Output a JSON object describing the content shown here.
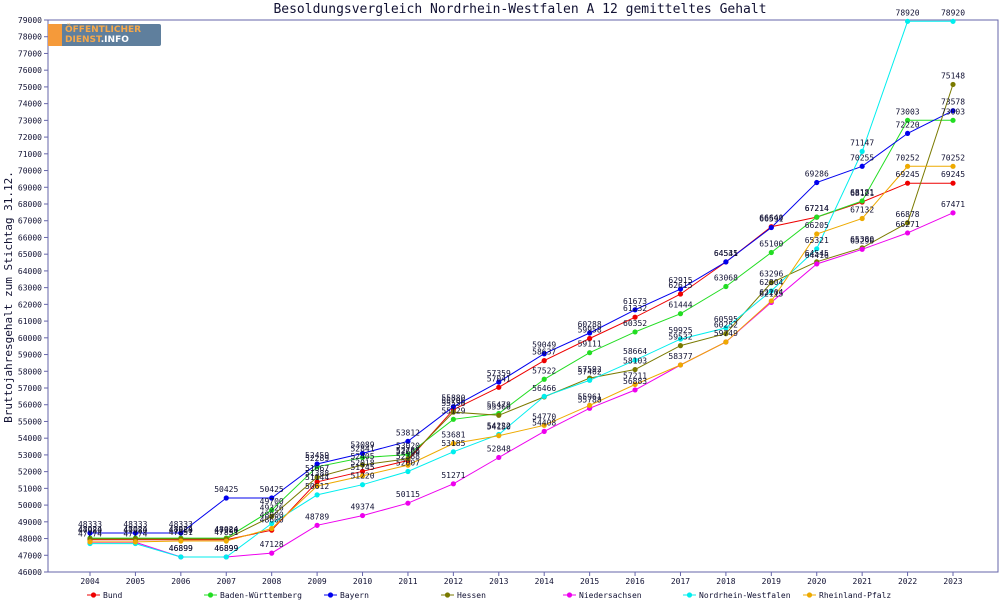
{
  "chart_data": {
    "type": "line",
    "title": "Besoldungsvergleich Nordrhein-Westfalen A 12 gemitteltes Gehalt",
    "ylabel": "Bruttojahresgehalt zum Stichtag 31.12.",
    "xlabel": "",
    "ylim": [
      46000,
      79000
    ],
    "yticks": [
      46000,
      47000,
      48000,
      49000,
      50000,
      51000,
      52000,
      53000,
      54000,
      55000,
      56000,
      57000,
      58000,
      59000,
      60000,
      61000,
      62000,
      63000,
      64000,
      65000,
      66000,
      67000,
      68000,
      69000,
      70000,
      71000,
      72000,
      73000,
      74000,
      75000,
      76000,
      77000,
      78000,
      79000
    ],
    "categories": [
      "2004",
      "2005",
      "2006",
      "2007",
      "2008",
      "2009",
      "2010",
      "2011",
      "2012",
      "2013",
      "2014",
      "2015",
      "2016",
      "2017",
      "2018",
      "2019",
      "2020",
      "2021",
      "2022",
      "2023"
    ],
    "grid": false,
    "legend": "bottom",
    "series": [
      {
        "name": "Bund",
        "color": "#ee0000",
        "values": [
          47933,
          47933,
          47933,
          47933,
          48500,
          51388,
          52018,
          52666,
          55706,
          57041,
          58637,
          59958,
          61232,
          62615,
          64535,
          66640,
          67214,
          68121,
          69245,
          69245
        ]
      },
      {
        "name": "Baden-Württemberg",
        "color": "#22dd22",
        "values": [
          48024,
          48024,
          48024,
          48024,
          49700,
          52289,
          52841,
          53020,
          55129,
          55478,
          57522,
          59111,
          60352,
          61444,
          63068,
          65100,
          67214,
          68181,
          73003,
          73003
        ]
      },
      {
        "name": "Bayern",
        "color": "#0000ee",
        "values": [
          48333,
          48333,
          48333,
          50425,
          50425,
          52459,
          53089,
          53812,
          55880,
          57359,
          59049,
          60288,
          61673,
          62915,
          64541,
          66591,
          69286,
          70255,
          72220,
          73578
        ]
      },
      {
        "name": "Hessen",
        "color": "#7a7a00",
        "values": [
          47980,
          47980,
          47980,
          47980,
          49326,
          51667,
          52405,
          52766,
          55556,
          55366,
          56466,
          57592,
          58103,
          59532,
          60252,
          63296,
          64545,
          65380,
          66878,
          75148
        ]
      },
      {
        "name": "Niedersachsen",
        "color": "#ee00ee",
        "values": [
          47774,
          47774,
          46899,
          46899,
          47128,
          48789,
          49374,
          50115,
          51271,
          52848,
          54408,
          55788,
          56883,
          58377,
          59749,
          62115,
          64416,
          65290,
          66271,
          67471
        ]
      },
      {
        "name": "Nordrhein-Westfalen",
        "color": "#00eeee",
        "values": [
          47700,
          47700,
          46899,
          46899,
          48900,
          50612,
          51220,
          52007,
          53185,
          54222,
          56499,
          57462,
          58664,
          59925,
          60595,
          62804,
          65321,
          71147,
          78920,
          78920
        ]
      },
      {
        "name": "Rheinland-Pfalz",
        "color": "#eeaa00",
        "values": [
          47800,
          47800,
          47851,
          47851,
          48600,
          51144,
          51745,
          52388,
          53681,
          54150,
          54770,
          55961,
          57211,
          58377,
          59749,
          62204,
          66205,
          67132,
          70252,
          70252
        ]
      }
    ],
    "data_labels": [
      [
        null,
        null,
        null,
        null,
        null,
        51388,
        52018,
        52666,
        55706,
        57041,
        58637,
        59958,
        61232,
        62615,
        64535,
        66640,
        67214,
        68121,
        69245,
        69245
      ],
      [
        48024,
        48024,
        48024,
        48024,
        49700,
        52289,
        52841,
        53020,
        55129,
        55478,
        57522,
        59111,
        60352,
        61444,
        63068,
        65100,
        67214,
        68181,
        73003,
        73003
      ],
      [
        48333,
        48333,
        48333,
        50425,
        50425,
        52459,
        53089,
        53812,
        55880,
        57359,
        59049,
        60288,
        61673,
        62915,
        64541,
        66591,
        69286,
        70255,
        72220,
        73578
      ],
      [
        47980,
        47980,
        47980,
        47980,
        49326,
        51667,
        52405,
        52766,
        55556,
        55366,
        56466,
        57592,
        58103,
        59532,
        60252,
        63296,
        64545,
        65380,
        66878,
        75148
      ],
      [
        47774,
        47774,
        46899,
        46899,
        47128,
        48789,
        49374,
        50115,
        51271,
        52848,
        54408,
        55788,
        56883,
        null,
        59749,
        62115,
        64416,
        65290,
        66271,
        67471
      ],
      [
        null,
        null,
        46899,
        46899,
        48900,
        50612,
        51220,
        52007,
        53185,
        54222,
        null,
        57462,
        58664,
        59925,
        60595,
        62804,
        65321,
        71147,
        78920,
        78920
      ],
      [
        null,
        null,
        47851,
        47851,
        48600,
        51144,
        51745,
        52388,
        53681,
        54150,
        54770,
        55961,
        57211,
        58377,
        null,
        62204,
        66205,
        67132,
        70252,
        70252
      ]
    ]
  },
  "logo": {
    "line1": "ÖFFENTLICHER",
    "line2": "DIENST",
    "line2_tld": ".INFO"
  }
}
